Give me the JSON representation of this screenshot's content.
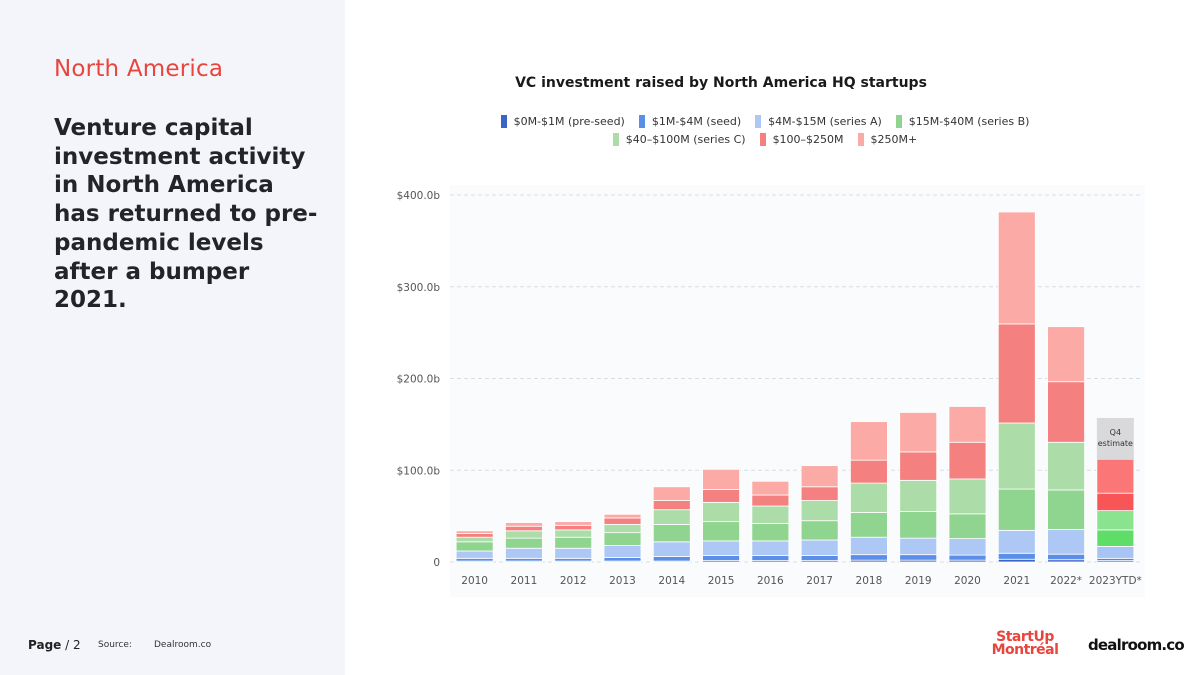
{
  "panel": {
    "region": "North America",
    "headline": "Venture capital investment activity in North America has returned to pre-pandemic levels after a bumper 2021."
  },
  "footer": {
    "page_label": "Page",
    "page_number": "/ 2",
    "source_label": "Source:",
    "source": "Dealroom.co"
  },
  "logos": {
    "startup_line1": "StartUp",
    "startup_line2": "Montréal",
    "dealroom": "dealroom.co"
  },
  "chart_data": {
    "type": "bar",
    "stacked": true,
    "title": "VC investment raised by North America HQ startups",
    "xlabel": "",
    "ylabel": "",
    "ylim": [
      0,
      400
    ],
    "yticks": [
      0,
      100,
      200,
      300,
      400
    ],
    "ytick_labels": [
      "0",
      "$100.0b",
      "$200.0b",
      "$300.0b",
      "$400.0b"
    ],
    "grid": true,
    "legend_position": "top",
    "categories": [
      "2010",
      "2011",
      "2012",
      "2013",
      "2014",
      "2015",
      "2016",
      "2017",
      "2018",
      "2019",
      "2020",
      "2021",
      "2022*",
      "2023YTD*"
    ],
    "series": [
      {
        "name": "$0M-$1M  (pre-seed)",
        "color": "#3b64c8",
        "values": [
          1,
          1,
          1,
          1,
          1,
          1.5,
          1.5,
          1.5,
          2,
          2,
          2,
          3,
          2.5,
          1.5
        ]
      },
      {
        "name": "$1M-$4M (seed)",
        "color": "#5a8ee8",
        "values": [
          3,
          3,
          3,
          4,
          5,
          5.5,
          5.5,
          5.5,
          6,
          6,
          5.5,
          6.5,
          6,
          2.5
        ]
      },
      {
        "name": "$4M-$15M (series A)",
        "color": "#aec8f5",
        "values": [
          8,
          11,
          11,
          13,
          16,
          16,
          16,
          17,
          19,
          18,
          18,
          25,
          27,
          13
        ]
      },
      {
        "name": "$15M-$40M (series B)",
        "color": "#8fd48f",
        "values": [
          10,
          11,
          12,
          14,
          19,
          21,
          19,
          21,
          27,
          29,
          27,
          45,
          43,
          18
        ]
      },
      {
        "name": "$40–$100M (series C)",
        "color": "#acdca8",
        "values": [
          5,
          8,
          8,
          9,
          16,
          21,
          19,
          22,
          32,
          34,
          38,
          72,
          52,
          21
        ]
      },
      {
        "name": "$100–$250M",
        "color": "#f58080",
        "values": [
          4,
          5,
          5,
          7,
          10,
          14,
          12,
          15,
          25,
          31,
          40,
          108,
          66,
          19
        ]
      },
      {
        "name": "$250M+",
        "color": "#fbaaa6",
        "values": [
          3,
          4,
          4,
          4,
          15,
          22,
          15,
          23,
          42,
          43,
          39,
          122,
          60,
          37
        ]
      }
    ],
    "estimate_series": {
      "category": "2023YTD*",
      "colors": [
        "#3b64c8",
        "#4a86f0",
        "#a8c4f5",
        "#5ede68",
        "#8ae38e",
        "#f85656",
        "#fb7676"
      ]
    },
    "annotation": {
      "category": "2023YTD*",
      "text_line1": "Q4",
      "text_line2": "estimate",
      "value_top": 157
    }
  }
}
